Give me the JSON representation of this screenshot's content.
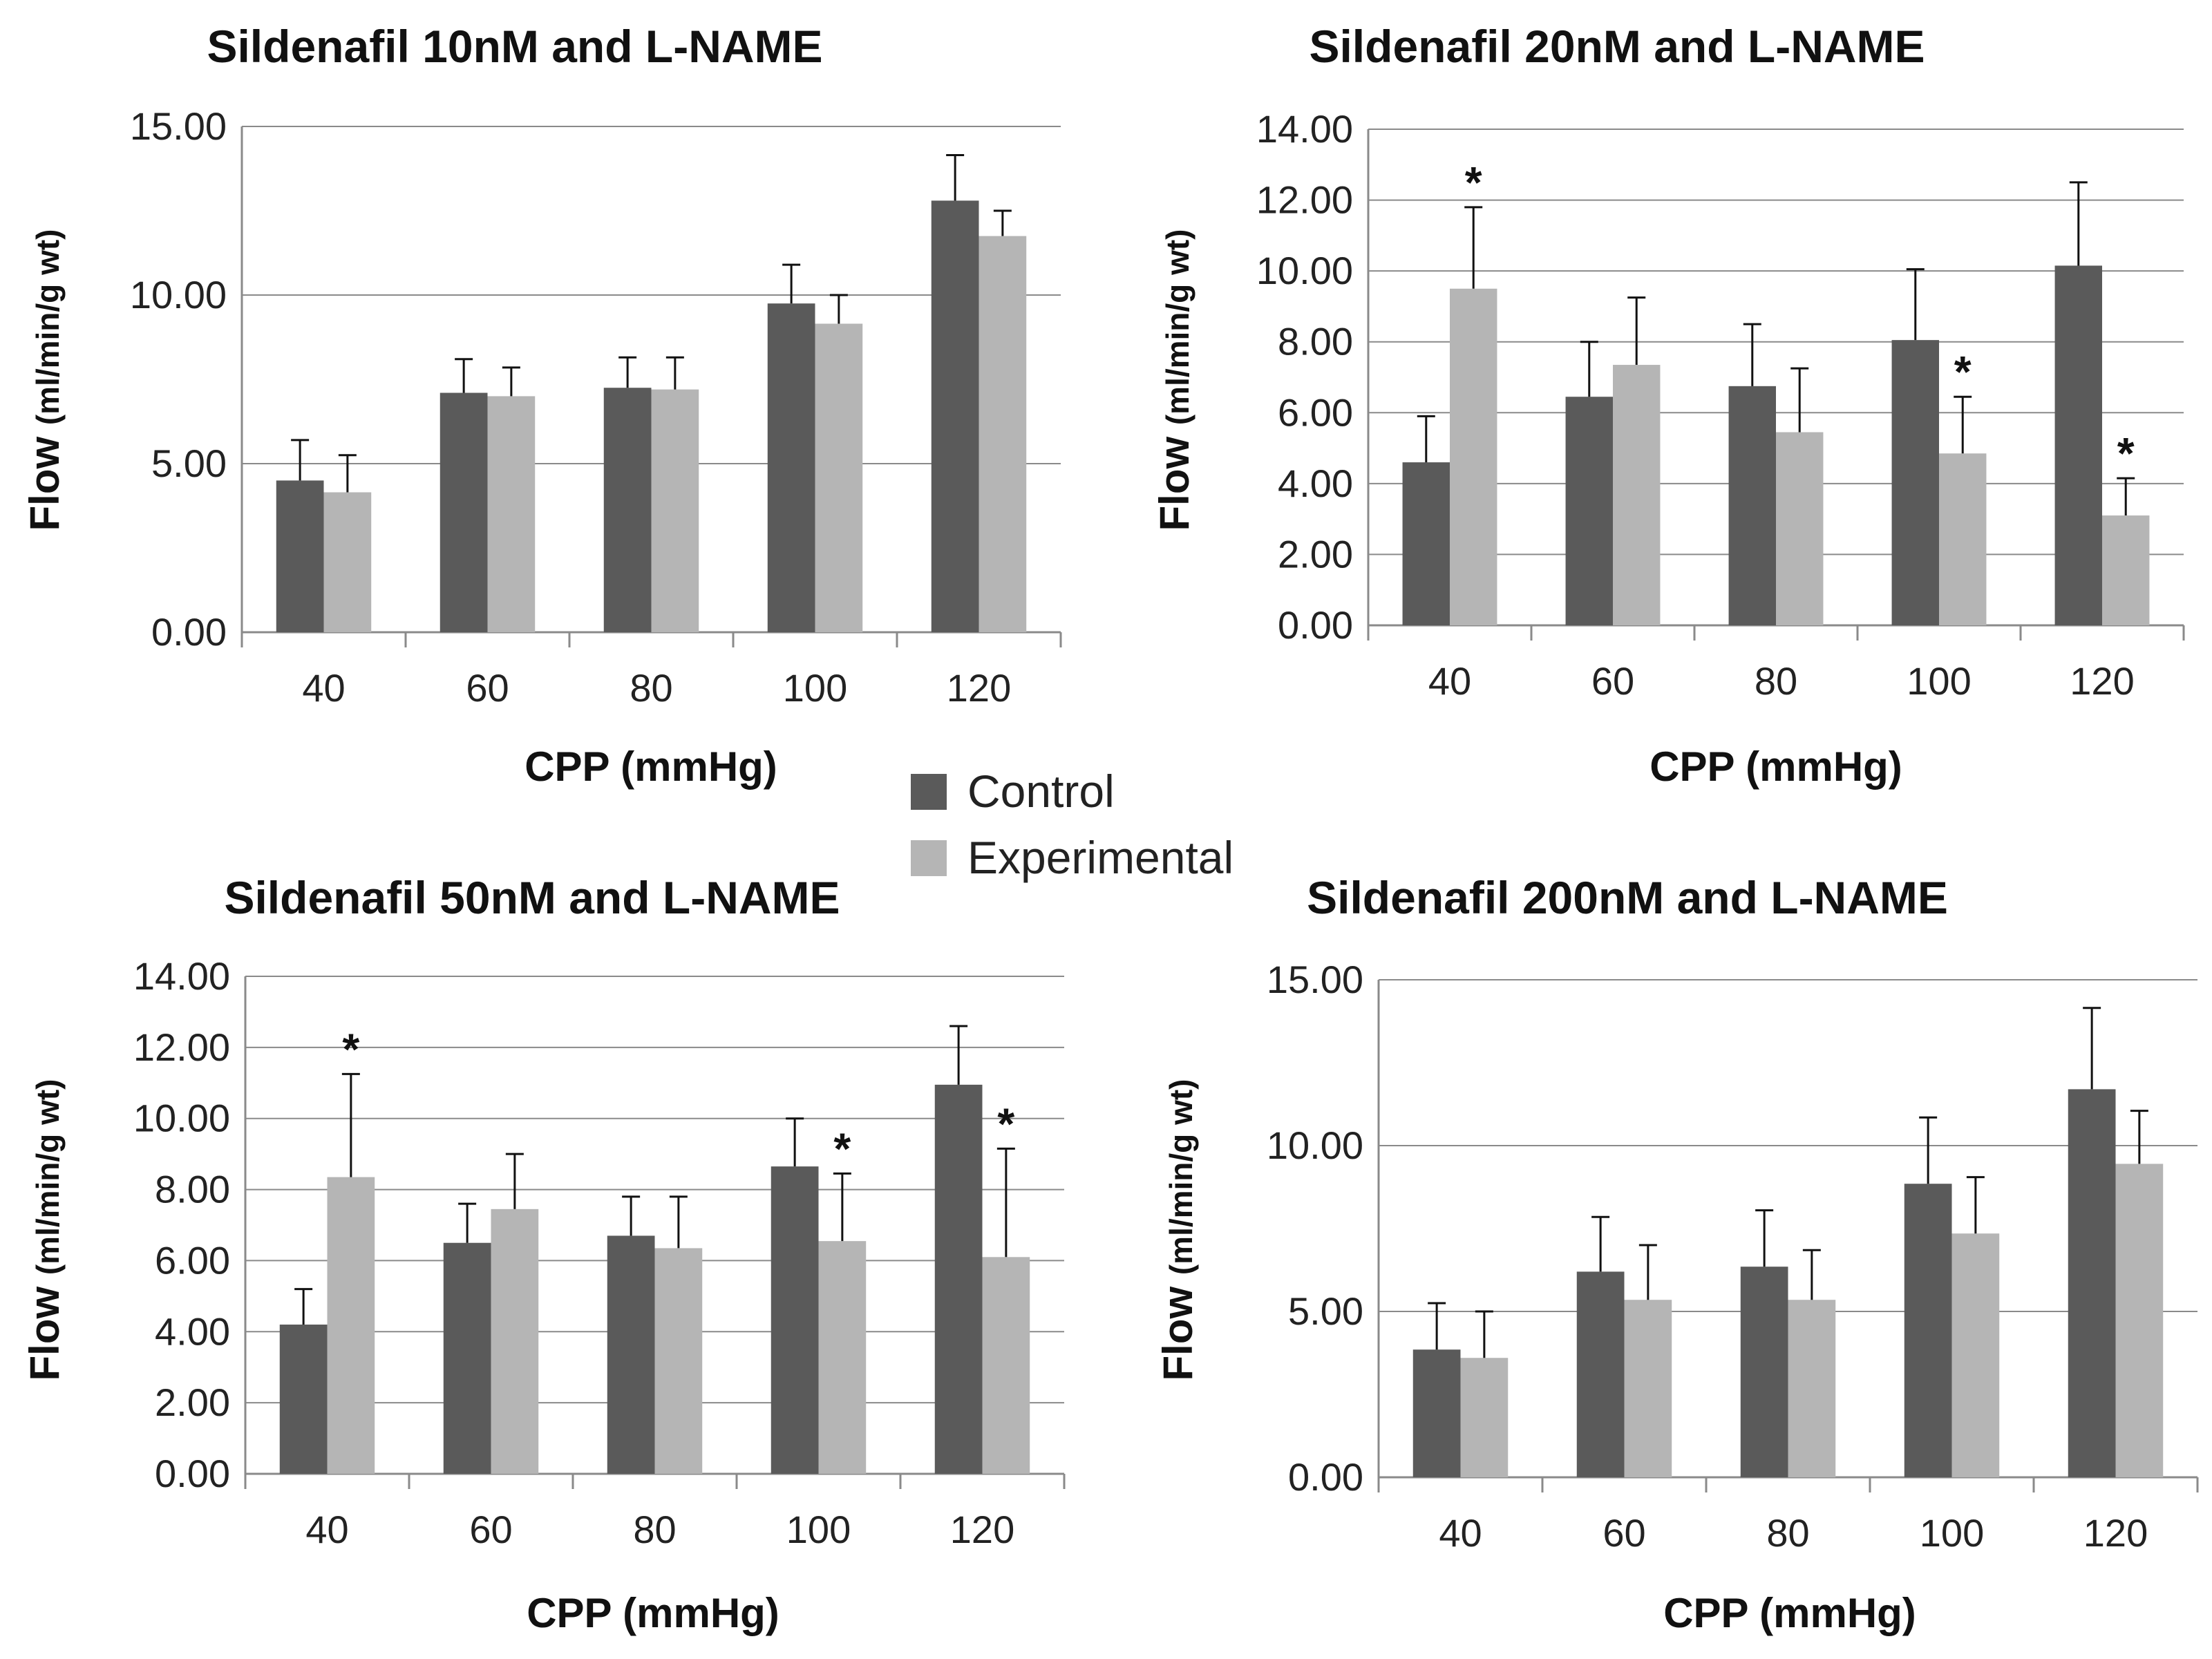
{
  "legend": {
    "entries": [
      {
        "name": "Control",
        "color": "#5a5a5a"
      },
      {
        "name": "Experimental",
        "color": "#b5b5b5"
      }
    ]
  },
  "chart_data": [
    {
      "type": "bar",
      "title": "Sildenafil 10nM and L-NAME",
      "xlabel": "CPP (mmHg)",
      "ylabel_main": "Flow ",
      "ylabel_unit": "(ml/min/g wt)",
      "categories": [
        "40",
        "60",
        "80",
        "100",
        "120"
      ],
      "ylim": [
        0,
        15
      ],
      "yticks": [
        "0.00",
        "5.00",
        "10.00",
        "15.00"
      ],
      "series": [
        {
          "name": "Control",
          "values": [
            4.5,
            7.1,
            7.25,
            9.75,
            12.8
          ],
          "errors": [
            1.2,
            1.0,
            0.9,
            1.15,
            1.35
          ]
        },
        {
          "name": "Experimental",
          "values": [
            4.15,
            7.0,
            7.2,
            9.15,
            11.75
          ],
          "errors": [
            1.1,
            0.85,
            0.95,
            0.85,
            0.75
          ]
        }
      ],
      "significant": []
    },
    {
      "type": "bar",
      "title": "Sildenafil 20nM and L-NAME",
      "xlabel": "CPP (mmHg)",
      "ylabel_main": "Flow ",
      "ylabel_unit": "(ml/min/g wt)",
      "categories": [
        "40",
        "60",
        "80",
        "100",
        "120"
      ],
      "ylim": [
        0,
        14
      ],
      "yticks": [
        "0.00",
        "2.00",
        "4.00",
        "6.00",
        "8.00",
        "10.00",
        "12.00",
        "14.00"
      ],
      "series": [
        {
          "name": "Control",
          "values": [
            4.6,
            6.45,
            6.75,
            8.05,
            10.15
          ],
          "errors": [
            1.3,
            1.55,
            1.75,
            2.0,
            2.35
          ]
        },
        {
          "name": "Experimental",
          "values": [
            9.5,
            7.35,
            5.45,
            4.85,
            3.1
          ],
          "errors": [
            2.3,
            1.9,
            1.8,
            1.6,
            1.05
          ]
        }
      ],
      "significant": [
        {
          "category": "40",
          "series": "Experimental",
          "label": "*"
        },
        {
          "category": "100",
          "series": "Experimental",
          "label": "*"
        },
        {
          "category": "120",
          "series": "Experimental",
          "label": "*"
        }
      ]
    },
    {
      "type": "bar",
      "title": "Sildenafil 50nM and L-NAME",
      "xlabel": "CPP (mmHg)",
      "ylabel_main": "Flow ",
      "ylabel_unit": "(ml/min/g wt)",
      "categories": [
        "40",
        "60",
        "80",
        "100",
        "120"
      ],
      "ylim": [
        0,
        14
      ],
      "yticks": [
        "0.00",
        "2.00",
        "4.00",
        "6.00",
        "8.00",
        "10.00",
        "12.00",
        "14.00"
      ],
      "series": [
        {
          "name": "Control",
          "values": [
            4.2,
            6.5,
            6.7,
            8.65,
            10.95
          ],
          "errors": [
            1.0,
            1.1,
            1.1,
            1.35,
            1.65
          ]
        },
        {
          "name": "Experimental",
          "values": [
            8.35,
            7.45,
            6.35,
            6.55,
            6.1
          ],
          "errors": [
            2.9,
            1.55,
            1.45,
            1.9,
            3.05
          ]
        }
      ],
      "significant": [
        {
          "category": "40",
          "series": "Experimental",
          "label": "*"
        },
        {
          "category": "100",
          "series": "Experimental",
          "label": "*"
        },
        {
          "category": "120",
          "series": "Experimental",
          "label": "*"
        }
      ]
    },
    {
      "type": "bar",
      "title": "Sildenafil 200nM and L-NAME",
      "xlabel": "CPP (mmHg)",
      "ylabel_main": "Flow ",
      "ylabel_unit": "(ml/min/g wt)",
      "categories": [
        "40",
        "60",
        "80",
        "100",
        "120"
      ],
      "ylim": [
        0,
        15
      ],
      "yticks": [
        "0.00",
        "5.00",
        "10.00",
        "15.00"
      ],
      "series": [
        {
          "name": "Control",
          "values": [
            3.85,
            6.2,
            6.35,
            8.85,
            11.7
          ],
          "errors": [
            1.4,
            1.65,
            1.7,
            2.0,
            2.45
          ]
        },
        {
          "name": "Experimental",
          "values": [
            3.6,
            5.35,
            5.35,
            7.35,
            9.45
          ],
          "errors": [
            1.4,
            1.65,
            1.5,
            1.7,
            1.6
          ]
        }
      ],
      "significant": []
    }
  ]
}
